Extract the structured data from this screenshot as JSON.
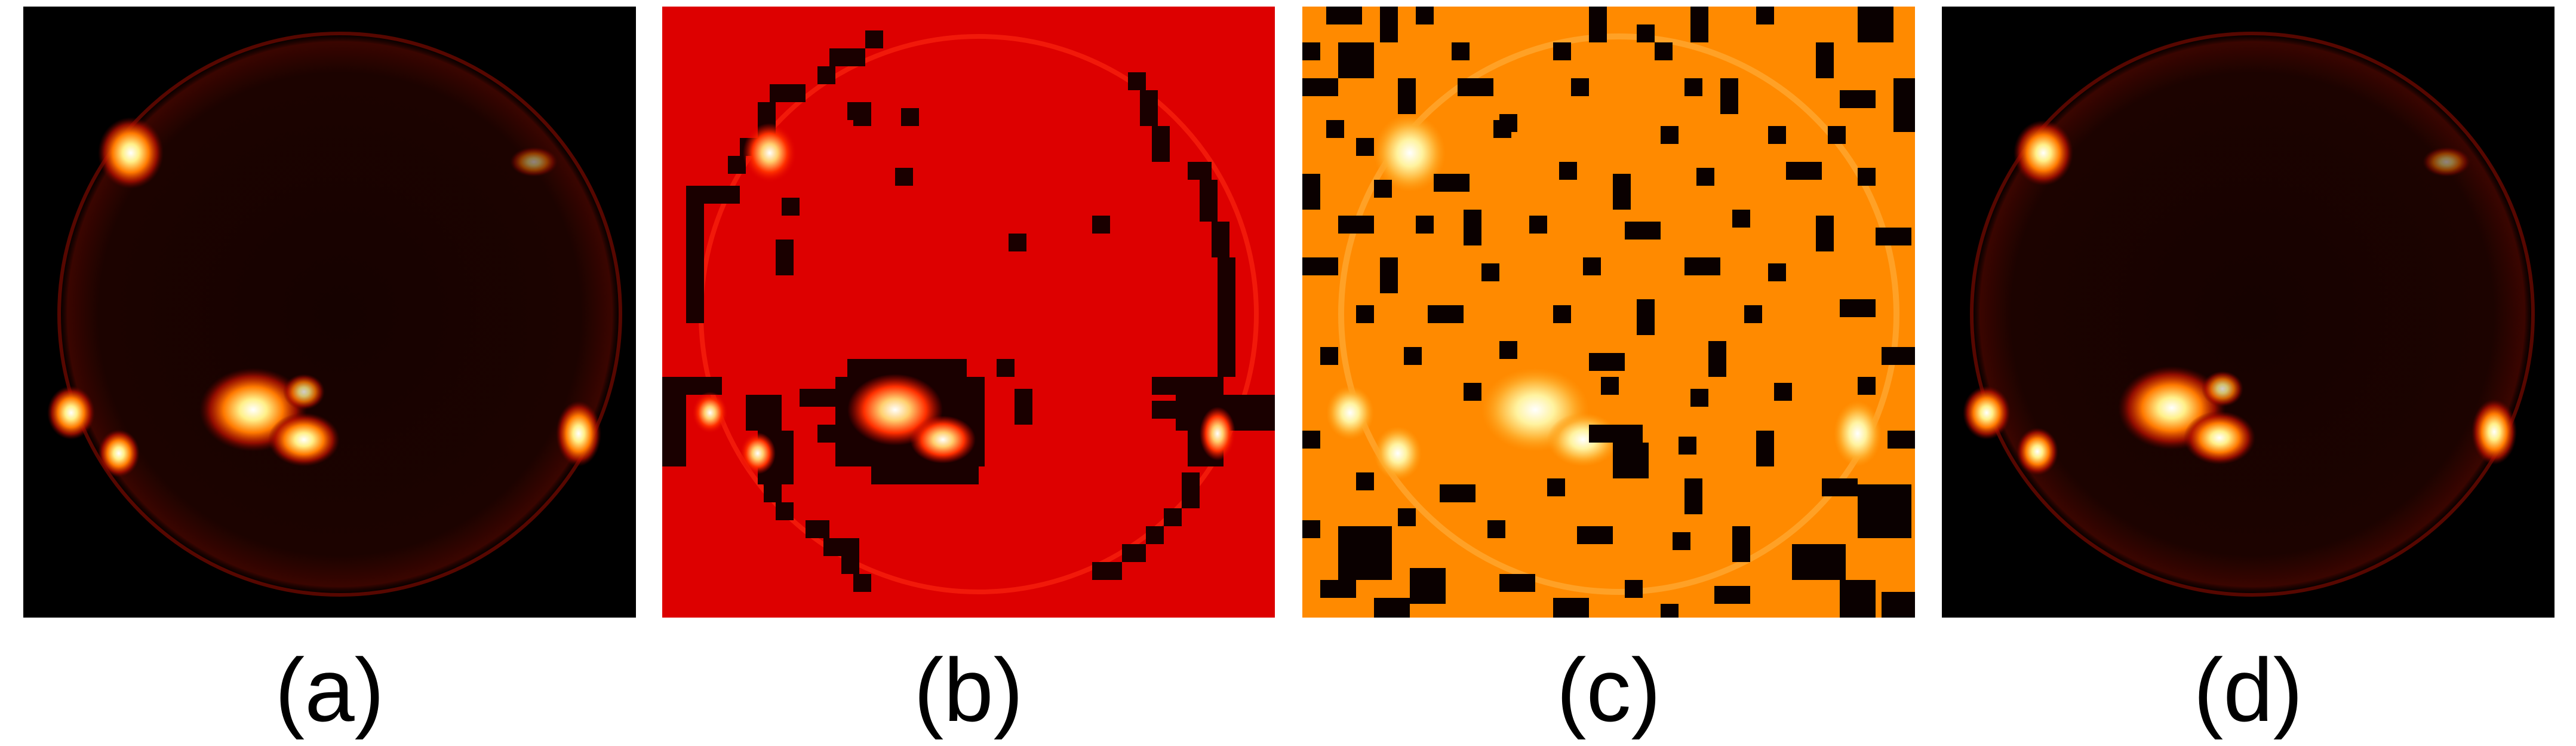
{
  "figure": {
    "panels": [
      {
        "id": "a",
        "label": "(a)",
        "content": "solar-disk-original",
        "colormap": "black-red-yellow-white"
      },
      {
        "id": "b",
        "label": "(b)",
        "content": "solar-disk-block-masked",
        "colormap": "red-saturated"
      },
      {
        "id": "c",
        "label": "(c)",
        "content": "solar-disk-random-block-masked",
        "colormap": "orange-saturated"
      },
      {
        "id": "d",
        "label": "(d)",
        "content": "solar-disk-reconstruction",
        "colormap": "black-red-yellow-white"
      }
    ]
  }
}
